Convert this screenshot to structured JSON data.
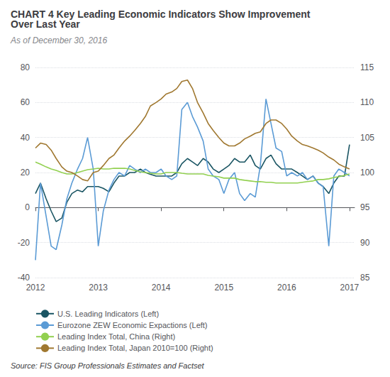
{
  "chart_data": {
    "type": "line",
    "title": "CHART 4 Key Leading Economic Indicators Show Improvement\nOver Last Year",
    "subtitle": "As of December 30, 2016",
    "annotations": [
      "Source: FIS Group Professionals Estimates and Factset"
    ],
    "x": [
      2012.0,
      2012.08,
      2012.17,
      2012.25,
      2012.33,
      2012.42,
      2012.5,
      2012.58,
      2012.67,
      2012.75,
      2012.83,
      2012.92,
      2013.0,
      2013.08,
      2013.17,
      2013.25,
      2013.33,
      2013.42,
      2013.5,
      2013.58,
      2013.67,
      2013.75,
      2013.83,
      2013.92,
      2014.0,
      2014.08,
      2014.17,
      2014.25,
      2014.33,
      2014.42,
      2014.5,
      2014.58,
      2014.67,
      2014.75,
      2014.83,
      2014.92,
      2015.0,
      2015.08,
      2015.17,
      2015.25,
      2015.33,
      2015.42,
      2015.5,
      2015.58,
      2015.67,
      2015.75,
      2015.83,
      2015.92,
      2016.0,
      2016.08,
      2016.17,
      2016.25,
      2016.33,
      2016.42,
      2016.5,
      2016.58,
      2016.67,
      2016.75,
      2016.83,
      2016.92,
      2017.0
    ],
    "xlim": [
      2012.0,
      2017.08
    ],
    "xticks": [
      2012,
      2013,
      2014,
      2015,
      2016,
      2017
    ],
    "ylim": [
      -40,
      80
    ],
    "yticks": [
      -40,
      -20,
      0,
      20,
      40,
      60,
      80
    ],
    "y2lim": [
      85,
      115
    ],
    "y2ticks": [
      85,
      90,
      95,
      100,
      105,
      110,
      115
    ],
    "grid": true,
    "legend": "bottom",
    "series": [
      {
        "name": "U.S. Leading Indicators (Left)",
        "color": "#1a5563",
        "values": [
          8,
          14,
          5,
          -2,
          -8,
          -6,
          3,
          8,
          10,
          9,
          12,
          12,
          12,
          11,
          9,
          14,
          18,
          18,
          20,
          20,
          22,
          20,
          19,
          18,
          18,
          18,
          18,
          20,
          25,
          28,
          26,
          24,
          28,
          26,
          22,
          20,
          22,
          24,
          28,
          26,
          26,
          30,
          24,
          22,
          28,
          30,
          25,
          22,
          22,
          22,
          20,
          18,
          16,
          18,
          14,
          12,
          8,
          14,
          18,
          18,
          36
        ]
      },
      {
        "name": "Eurozone ZEW Economic Expactions (Left)",
        "color": "#5b9bd5",
        "values": [
          -30,
          14,
          -5,
          -22,
          -24,
          -10,
          5,
          14,
          22,
          28,
          40,
          22,
          -22,
          -2,
          10,
          16,
          20,
          18,
          24,
          22,
          20,
          22,
          20,
          20,
          22,
          18,
          16,
          18,
          56,
          60,
          52,
          46,
          38,
          22,
          18,
          16,
          8,
          16,
          20,
          8,
          4,
          8,
          6,
          24,
          62,
          48,
          34,
          32,
          18,
          20,
          18,
          20,
          16,
          18,
          14,
          12,
          -22,
          18,
          22,
          20,
          18
        ]
      },
      {
        "name": "Leading Index Total, China (Right)",
        "color": "#92d050",
        "axis": "y2",
        "values": [
          101.5,
          101.2,
          100.8,
          100.5,
          100.3,
          100.0,
          99.8,
          99.8,
          100.0,
          100.2,
          100.4,
          100.5,
          100.6,
          100.5,
          100.5,
          100.6,
          100.6,
          100.6,
          100.5,
          100.3,
          100.1,
          100.0,
          99.9,
          99.8,
          99.8,
          100.0,
          100.0,
          100.0,
          99.9,
          99.8,
          99.8,
          99.8,
          99.8,
          99.6,
          99.5,
          99.4,
          99.2,
          99.2,
          99.2,
          99.0,
          98.9,
          98.8,
          98.7,
          98.7,
          98.6,
          98.6,
          98.5,
          98.5,
          98.5,
          98.5,
          98.5,
          98.6,
          98.7,
          98.8,
          99.0,
          99.0,
          99.1,
          99.3,
          99.4,
          99.6,
          99.8
        ]
      },
      {
        "name": "Leading Index Total, Japan 2010=100 (Right)",
        "color": "#a07830",
        "axis": "y2",
        "values": [
          103.5,
          104.2,
          104.0,
          103.2,
          102.0,
          100.8,
          100.2,
          100.0,
          99.5,
          99.0,
          98.8,
          100.0,
          100.2,
          101.0,
          102.0,
          102.5,
          103.5,
          104.5,
          105.2,
          106.0,
          107.0,
          108.0,
          109.5,
          110.0,
          110.5,
          111.2,
          111.5,
          112.0,
          113.0,
          113.2,
          112.0,
          110.0,
          108.5,
          107.0,
          106.0,
          105.0,
          104.2,
          103.8,
          103.8,
          104.2,
          104.8,
          105.2,
          105.6,
          105.8,
          107.0,
          107.5,
          107.5,
          107.0,
          106.2,
          105.2,
          104.5,
          104.0,
          103.8,
          103.5,
          103.2,
          102.8,
          102.2,
          101.8,
          101.2,
          100.8,
          100.5
        ]
      }
    ]
  }
}
